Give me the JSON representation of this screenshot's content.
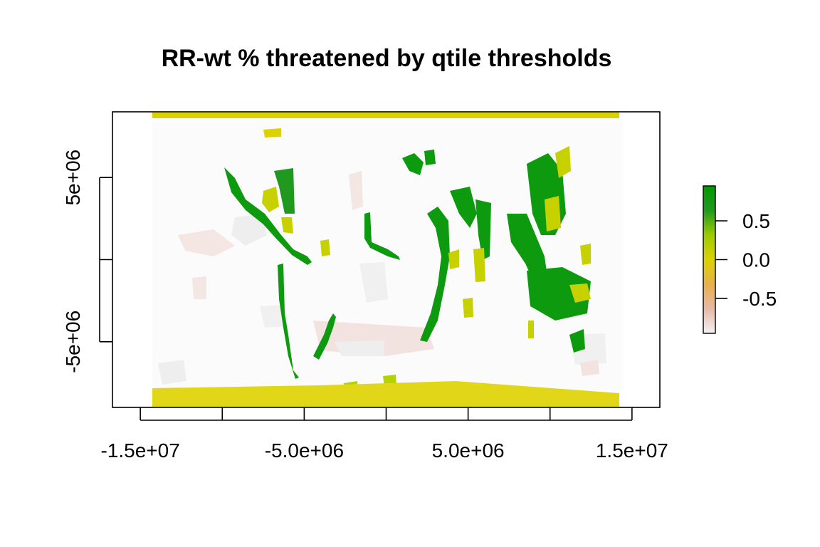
{
  "title": "RR-wt % threatened by qtile thresholds",
  "chart_data": {
    "type": "heatmap",
    "title": "RR-wt % threatened by qtile thresholds",
    "x_ticks": [
      {
        "value": -15000000,
        "label": "-1.5e+07"
      },
      {
        "value": -10000000,
        "label": ""
      },
      {
        "value": -5000000,
        "label": "-5.0e+06"
      },
      {
        "value": 0,
        "label": ""
      },
      {
        "value": 5000000,
        "label": "5.0e+06"
      },
      {
        "value": 10000000,
        "label": ""
      },
      {
        "value": 15000000,
        "label": "1.5e+07"
      }
    ],
    "y_ticks": [
      {
        "value": 5000000,
        "label": "5e+06"
      },
      {
        "value": 0,
        "label": ""
      },
      {
        "value": -5000000,
        "label": "-5e+06"
      }
    ],
    "xlim": [
      -16700000,
      16700000
    ],
    "ylim": [
      -9000000,
      9000000
    ],
    "legend": {
      "placement": "right",
      "range": [
        -0.95,
        0.95
      ],
      "ticks": [
        {
          "value": 0.5,
          "label": "0.5"
        },
        {
          "value": 0.0,
          "label": "0.0"
        },
        {
          "value": -0.5,
          "label": "-0.5"
        }
      ],
      "colors": [
        "#f2f2f2",
        "#e7b8a8",
        "#e8b14a",
        "#dcd200",
        "#9dcb00",
        "#1f9a1f",
        "#009a00"
      ]
    },
    "colors": {
      "land": "#ffffff",
      "coast_positive": "#0e9a0e",
      "mid_positive": "#c7d100",
      "near_zero": "#e2d618",
      "ocean_low": "#f0f0f0",
      "ocean_negative": "#f2e3e0"
    }
  }
}
